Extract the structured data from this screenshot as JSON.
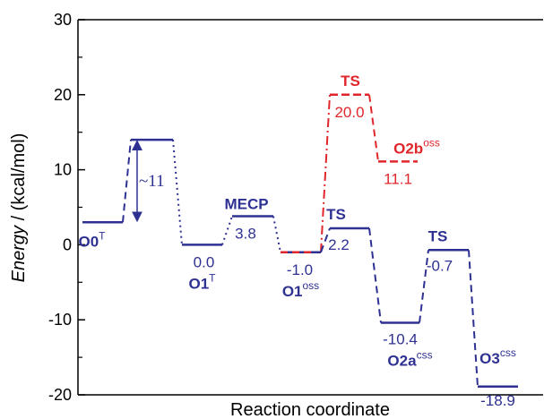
{
  "chart_data": {
    "type": "line",
    "title": "",
    "xlabel": "Reaction coordinate",
    "ylabel": {
      "main": "Energy",
      "unit": " / (kcal/mol)"
    },
    "ylim": [
      -20,
      30
    ],
    "yticks": [
      "30",
      "20",
      "10",
      "0",
      "-10",
      "-20"
    ],
    "colors": {
      "blue": "#2E3192",
      "red": "#E0262B",
      "axis": "#000000"
    },
    "levels": [
      {
        "id": "o0",
        "energy": 3.0,
        "value_label": "",
        "state_label": "O0",
        "state_sup": "T",
        "color": "blue"
      },
      {
        "id": "ts1",
        "energy": 14.0,
        "value_label": "",
        "state_label": "",
        "state_sup": "",
        "color": "blue"
      },
      {
        "id": "o1t",
        "energy": 0.0,
        "value_label": "0.0",
        "state_label": "O1",
        "state_sup": "T",
        "color": "blue"
      },
      {
        "id": "mecp",
        "energy": 3.8,
        "value_label": "3.8",
        "state_label": "MECP",
        "state_sup": "",
        "color": "blue"
      },
      {
        "id": "o1oss",
        "energy": -1.0,
        "value_label": "-1.0",
        "state_label": "O1",
        "state_sup": "oss",
        "color": "blue"
      },
      {
        "id": "ts_red",
        "energy": 20.0,
        "value_label": "20.0",
        "state_label": "TS",
        "state_sup": "",
        "color": "red"
      },
      {
        "id": "o2b",
        "energy": 11.1,
        "value_label": "11.1",
        "state_label": "O2b",
        "state_sup": "oss",
        "color": "red"
      },
      {
        "id": "ts2",
        "energy": 2.2,
        "value_label": "2.2",
        "state_label": "TS",
        "state_sup": "",
        "color": "blue"
      },
      {
        "id": "o2a",
        "energy": -10.4,
        "value_label": "-10.4",
        "state_label": "O2a",
        "state_sup": "css",
        "color": "blue"
      },
      {
        "id": "ts3",
        "energy": -0.7,
        "value_label": "-0.7",
        "state_label": "TS",
        "state_sup": "",
        "color": "blue"
      },
      {
        "id": "o3",
        "energy": -18.9,
        "value_label": "-18.9",
        "state_label": "O3",
        "state_sup": "css",
        "color": "blue"
      }
    ],
    "barrier_annotation": {
      "text": "~11",
      "from_energy": 3.0,
      "to_energy": 14.0
    }
  }
}
